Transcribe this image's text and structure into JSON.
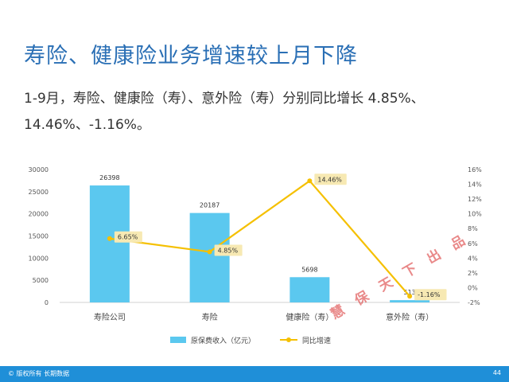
{
  "title": "寿险、健康险业务增速较上月下降",
  "subtitle": "1-9月，寿险、健康险（寿）、意外险（寿）分别同比增长 4.85%、14.46%、-1.16%。",
  "watermark": "慧 保 天 下 出 品",
  "footer": {
    "copyright": "© 版权所有 长期数据",
    "page_number": "44"
  },
  "colors": {
    "title": "#2a6fb5",
    "bar": "#5bc8ef",
    "line": "#f5c000",
    "label_bg": "#f7e9b3",
    "footer": "#1f8fd8"
  },
  "chart_data": {
    "type": "bar",
    "categories": [
      "寿险公司",
      "寿险",
      "健康险（寿）",
      "意外险（寿）"
    ],
    "series": [
      {
        "name": "原保费收入（亿元）",
        "type": "bar",
        "axis": "left",
        "values": [
          26398,
          20187,
          5698,
          513
        ],
        "labels": [
          "26398",
          "20187",
          "5698",
          "513"
        ]
      },
      {
        "name": "同比增速",
        "type": "line",
        "axis": "right",
        "values": [
          6.65,
          4.85,
          14.46,
          -1.16
        ],
        "labels": [
          "6.65%",
          "4.85%",
          "14.46%",
          "-1.16%"
        ]
      }
    ],
    "y_left": {
      "min": 0,
      "max": 30000,
      "ticks": [
        "0",
        "5000",
        "10000",
        "15000",
        "20000",
        "25000",
        "30000"
      ]
    },
    "y_right": {
      "min": -2,
      "max": 16,
      "ticks": [
        "-2%",
        "0%",
        "2%",
        "4%",
        "6%",
        "8%",
        "10%",
        "12%",
        "14%",
        "16%"
      ]
    },
    "grid": false,
    "legend_position": "bottom"
  }
}
